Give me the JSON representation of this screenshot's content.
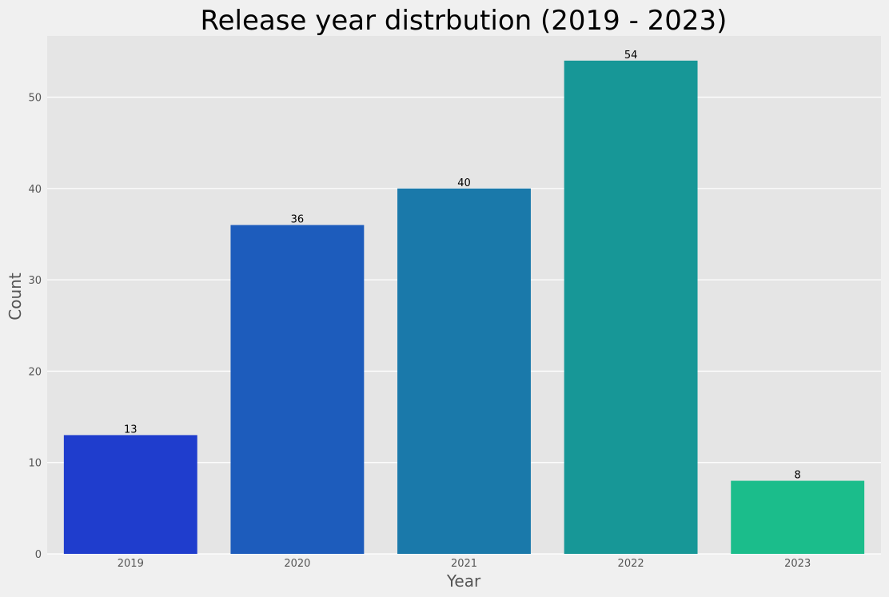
{
  "chart_data": {
    "type": "bar",
    "title": "Release year distrbution (2019 - 2023)",
    "xlabel": "Year",
    "ylabel": "Count",
    "categories": [
      "2019",
      "2020",
      "2021",
      "2022",
      "2023"
    ],
    "values": [
      13,
      36,
      40,
      54,
      8
    ],
    "data_labels": [
      "13",
      "36",
      "40",
      "54",
      "8"
    ],
    "colors": [
      "#1f3dcd",
      "#1d5cbc",
      "#1a79aa",
      "#179797",
      "#1bbd8b"
    ],
    "ylim": [
      0,
      56.7
    ],
    "yticks": [
      0,
      10,
      20,
      30,
      40,
      50
    ],
    "ytick_labels": [
      "0",
      "10",
      "20",
      "30",
      "40",
      "50"
    ],
    "grid": true,
    "background": "#e5e5e5",
    "figure_background": "#f0f0f0"
  }
}
